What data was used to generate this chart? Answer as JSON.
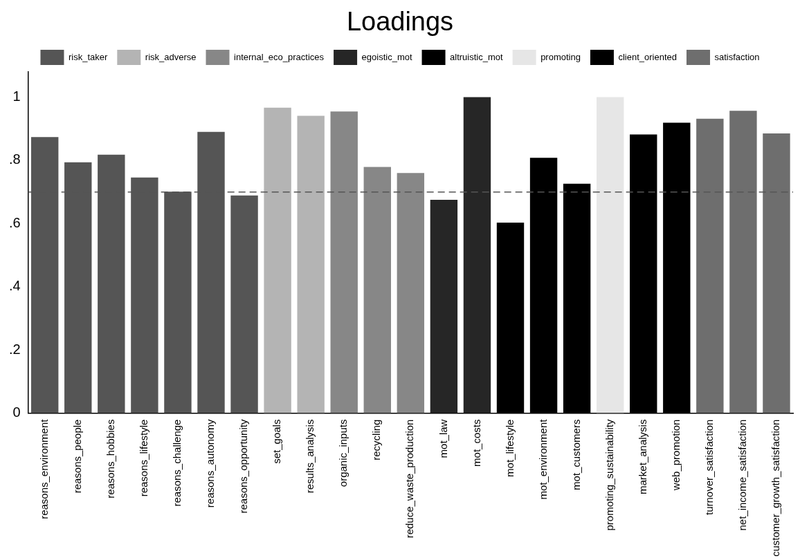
{
  "chart_data": {
    "type": "bar",
    "title": "Loadings",
    "categories": [
      "reasons_environment",
      "reasons_people",
      "reasons_hobbies",
      "reasons_lifestyle",
      "reasons_challenge",
      "reasons_autonomy",
      "reasons_opportunity",
      "set_goals",
      "results_analysis",
      "organic_inputs",
      "recycling",
      "reduce_waste_production",
      "mot_law",
      "mot_costs",
      "mot_lifestyle",
      "mot_environment",
      "mot_customers",
      "promoting_sustainability",
      "market_analysis",
      "web_promotion",
      "turnover_satisfaction",
      "net_income_satisfaction",
      "customer_growth_satisfaction"
    ],
    "series": [
      {
        "name": "risk_taker",
        "color": "#555555",
        "values": [
          0.874,
          0.794,
          0.818,
          0.746,
          0.701,
          0.89,
          0.689,
          null,
          null,
          null,
          null,
          null,
          null,
          null,
          null,
          null,
          null,
          null,
          null,
          null,
          null,
          null,
          null
        ]
      },
      {
        "name": "risk_adverse",
        "color": "#b4b4b4",
        "values": [
          null,
          null,
          null,
          null,
          null,
          null,
          null,
          0.967,
          0.941,
          null,
          null,
          null,
          null,
          null,
          null,
          null,
          null,
          null,
          null,
          null,
          null,
          null,
          null
        ]
      },
      {
        "name": "internal_eco_practices",
        "color": "#878787",
        "values": [
          null,
          null,
          null,
          null,
          null,
          null,
          null,
          null,
          null,
          0.955,
          0.779,
          0.76,
          null,
          null,
          null,
          null,
          null,
          null,
          null,
          null,
          null,
          null,
          null
        ]
      },
      {
        "name": "egoistic_mot",
        "color": "#262626",
        "values": [
          null,
          null,
          null,
          null,
          null,
          null,
          null,
          null,
          null,
          null,
          null,
          null,
          0.675,
          1.0,
          null,
          null,
          null,
          null,
          null,
          null,
          null,
          null,
          null
        ]
      },
      {
        "name": "altruistic_mot",
        "color": "#000000",
        "values": [
          null,
          null,
          null,
          null,
          null,
          null,
          null,
          null,
          null,
          null,
          null,
          null,
          null,
          null,
          0.603,
          0.808,
          0.726,
          null,
          null,
          null,
          null,
          null,
          null
        ]
      },
      {
        "name": "promoting",
        "color": "#e6e6e6",
        "values": [
          null,
          null,
          null,
          null,
          null,
          null,
          null,
          null,
          null,
          null,
          null,
          null,
          null,
          null,
          null,
          null,
          null,
          1.0,
          null,
          null,
          null,
          null,
          null
        ]
      },
      {
        "name": "client_oriented",
        "color": "#000000",
        "values": [
          null,
          null,
          null,
          null,
          null,
          null,
          null,
          null,
          null,
          null,
          null,
          null,
          null,
          null,
          null,
          null,
          null,
          null,
          0.882,
          0.919,
          null,
          null,
          null
        ]
      },
      {
        "name": "satisfaction",
        "color": "#6e6e6e",
        "values": [
          null,
          null,
          null,
          null,
          null,
          null,
          null,
          null,
          null,
          null,
          null,
          null,
          null,
          null,
          null,
          null,
          null,
          null,
          null,
          null,
          0.932,
          0.957,
          0.885
        ]
      }
    ],
    "ylim": [
      0,
      1.08
    ],
    "yticks": [
      0,
      {
        "value": 0.2,
        "label": ".2"
      },
      {
        "value": 0.4,
        "label": ".4"
      },
      {
        "value": 0.6,
        "label": ".6"
      },
      {
        "value": 0.8,
        "label": ".8"
      },
      1
    ],
    "ref_lines": [
      {
        "axis": "y",
        "value": 0.7,
        "line_style": "dashed",
        "color": "#555555"
      }
    ],
    "grid": false,
    "legend": "top"
  }
}
